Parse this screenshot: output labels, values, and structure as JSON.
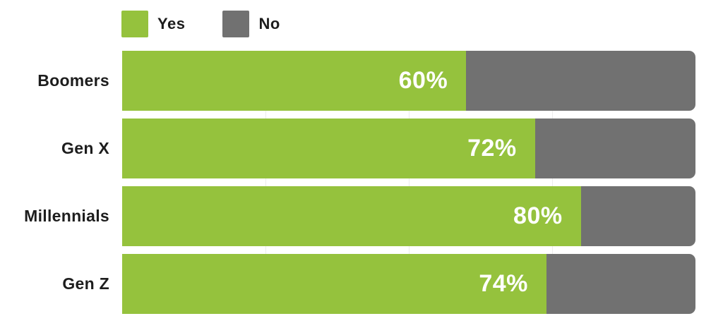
{
  "chart_data": {
    "type": "bar",
    "orientation": "horizontal",
    "stacked": true,
    "categories": [
      "Boomers",
      "Gen X",
      "Millennials",
      "Gen Z"
    ],
    "series": [
      {
        "name": "Yes",
        "color": "#95c23d",
        "values": [
          60,
          72,
          80,
          74
        ]
      },
      {
        "name": "No",
        "color": "#717171",
        "values": [
          40,
          28,
          20,
          26
        ]
      }
    ],
    "value_labels": [
      "60%",
      "72%",
      "80%",
      "74%"
    ],
    "xlim": [
      0,
      100
    ],
    "gridlines_pct": [
      25,
      50,
      75
    ],
    "grid": "faint vertical quarter lines",
    "legend_position": "top-left",
    "title": "",
    "xlabel": "",
    "ylabel": ""
  },
  "legend": {
    "items": [
      {
        "label": "Yes",
        "color": "#95c23d"
      },
      {
        "label": "No",
        "color": "#717171"
      }
    ]
  },
  "colors": {
    "yes_green": "#95c23d",
    "no_gray": "#717171",
    "label_text": "#1d1d1d",
    "value_text": "#ffffff",
    "gridline": "#ececec",
    "background": "#ffffff"
  }
}
